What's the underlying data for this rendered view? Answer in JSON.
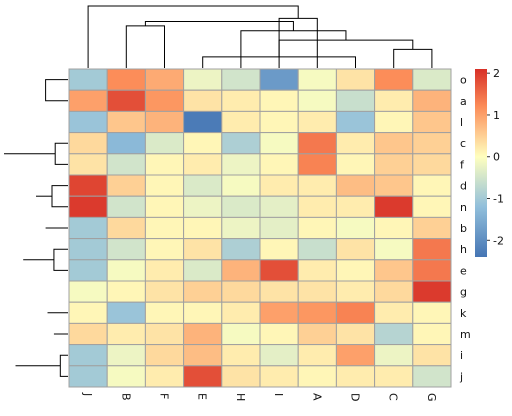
{
  "chart_data": {
    "type": "heatmap",
    "title": "",
    "xlabel": "",
    "ylabel": "",
    "columns": [
      "J",
      "B",
      "F",
      "E",
      "H",
      "I",
      "A",
      "D",
      "C",
      "G"
    ],
    "rows": [
      "o",
      "a",
      "l",
      "c",
      "f",
      "d",
      "n",
      "b",
      "h",
      "e",
      "g",
      "k",
      "m",
      "i",
      "j"
    ],
    "values": [
      [
        -1.0,
        1.2,
        0.9,
        -0.2,
        -0.5,
        -1.8,
        -0.1,
        0.3,
        1.2,
        -0.4
      ],
      [
        1.0,
        1.8,
        1.1,
        0.3,
        0.2,
        0.1,
        -0.1,
        -0.6,
        0.2,
        0.8
      ],
      [
        -1.1,
        0.6,
        0.8,
        -2.3,
        0.2,
        0.1,
        0.2,
        -1.1,
        0.1,
        0.6
      ],
      [
        0.4,
        -1.3,
        -0.4,
        0.1,
        -0.9,
        -0.1,
        1.4,
        0.2,
        0.6,
        0.5
      ],
      [
        0.3,
        -0.5,
        0.1,
        0.2,
        -0.2,
        0.1,
        1.3,
        0.1,
        0.5,
        0.4
      ],
      [
        1.9,
        0.5,
        0.1,
        -0.4,
        -0.1,
        0.2,
        0.2,
        0.7,
        0.6,
        0.1
      ],
      [
        2.0,
        -0.5,
        0.1,
        -0.2,
        -0.4,
        -0.3,
        0.2,
        0.2,
        2.0,
        0.1
      ],
      [
        -1.0,
        0.4,
        0.1,
        0.1,
        -0.2,
        -0.3,
        0.1,
        -0.1,
        0.1,
        0.5
      ],
      [
        -1.0,
        -0.5,
        0.1,
        0.3,
        -0.9,
        0.1,
        -0.6,
        0.3,
        -0.1,
        1.4
      ],
      [
        -1.0,
        -0.1,
        0.2,
        -0.4,
        0.8,
        1.8,
        0.2,
        0.1,
        0.6,
        1.4
      ],
      [
        -0.1,
        0.1,
        0.3,
        0.5,
        0.4,
        0.3,
        0.3,
        0.2,
        0.4,
        2.0
      ],
      [
        0.1,
        -1.1,
        0.1,
        0.1,
        0.2,
        1.0,
        1.1,
        1.3,
        0.2,
        0.1
      ],
      [
        0.4,
        0.2,
        0.3,
        0.8,
        -0.1,
        0.1,
        0.5,
        0.3,
        -0.8,
        0.1
      ],
      [
        -1.0,
        -0.2,
        0.4,
        0.7,
        0.2,
        -0.3,
        0.2,
        1.0,
        -0.2,
        0.3
      ],
      [
        -1.0,
        -0.1,
        0.2,
        1.8,
        0.3,
        0.2,
        0.1,
        0.2,
        0.2,
        -0.5
      ]
    ],
    "color_scale": {
      "min": -2.4,
      "max": 2.1,
      "stops": [
        {
          "value": -2.4,
          "color": "#4575b4"
        },
        {
          "value": -1.2,
          "color": "#91bfdb"
        },
        {
          "value": 0.0,
          "color": "#ffffbf"
        },
        {
          "value": 1.2,
          "color": "#fc8d59"
        },
        {
          "value": 2.1,
          "color": "#d73027"
        }
      ]
    },
    "legend": {
      "ticks": [
        2,
        1,
        0,
        -1,
        -2
      ],
      "tick_labels": [
        "2",
        "1",
        "0",
        "-1",
        "-2"
      ],
      "position": "right"
    },
    "cell_border_color": "#a0a0a0",
    "column_dendrogram": [
      {
        "left": 7,
        "right": 3,
        "height": 0.18
      },
      {
        "left": 9,
        "right": 8,
        "height": 0.3
      },
      {
        "left": 10,
        "right": 11,
        "height": 0.45
      },
      {
        "left": 4,
        "right": 12,
        "height": 0.6
      },
      {
        "left": 1,
        "right": 2,
        "height": 0.68
      },
      {
        "left": 13,
        "right": 14,
        "height": 0.75
      },
      {
        "left": 5,
        "right": 6,
        "height": 0.8
      },
      {
        "left": 0,
        "right": 16,
        "height": 1.0
      }
    ],
    "row_dendrogram": [
      {
        "left": 0,
        "right": 1,
        "height": 0.35
      },
      {
        "left": 16,
        "right": 2,
        "height": 0.5
      },
      {
        "left": 3,
        "right": 4,
        "height": 0.2
      },
      {
        "left": 5,
        "right": 6,
        "height": 0.25
      },
      {
        "left": 18,
        "right": 19,
        "height": 0.5
      },
      {
        "left": 8,
        "right": 9,
        "height": 0.22
      },
      {
        "left": 7,
        "right": 21,
        "height": 0.35
      },
      {
        "left": 22,
        "right": 10,
        "height": 0.42
      },
      {
        "left": 20,
        "right": 23,
        "height": 0.7
      },
      {
        "left": 13,
        "right": 14,
        "height": 0.12
      },
      {
        "left": 12,
        "right": 25,
        "height": 0.22
      },
      {
        "left": 11,
        "right": 26,
        "height": 0.32
      },
      {
        "left": 24,
        "right": 27,
        "height": 0.82
      },
      {
        "left": 17,
        "right": 28,
        "height": 1.0
      }
    ]
  }
}
